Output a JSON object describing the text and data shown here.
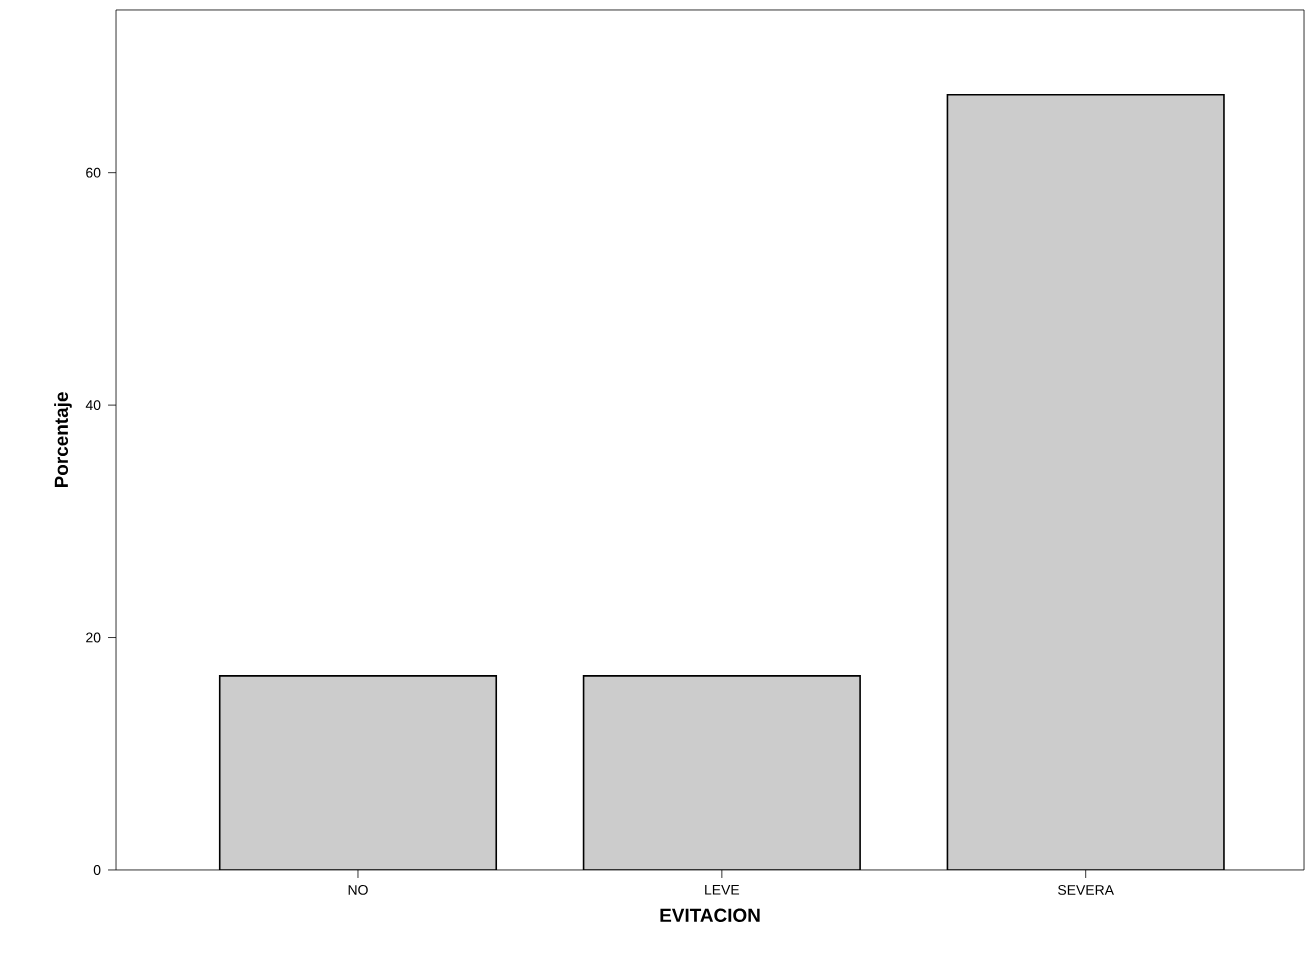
{
  "chart_data": {
    "type": "bar",
    "xlabel": "EVITACION",
    "ylabel": "Porcentaje",
    "categories": [
      "NO",
      "LEVE",
      "SEVERA"
    ],
    "values": [
      16.7,
      16.7,
      66.7
    ],
    "color": "#cccccc",
    "ylim": [
      0,
      74
    ],
    "yticks": [
      0,
      20,
      40,
      60
    ]
  }
}
